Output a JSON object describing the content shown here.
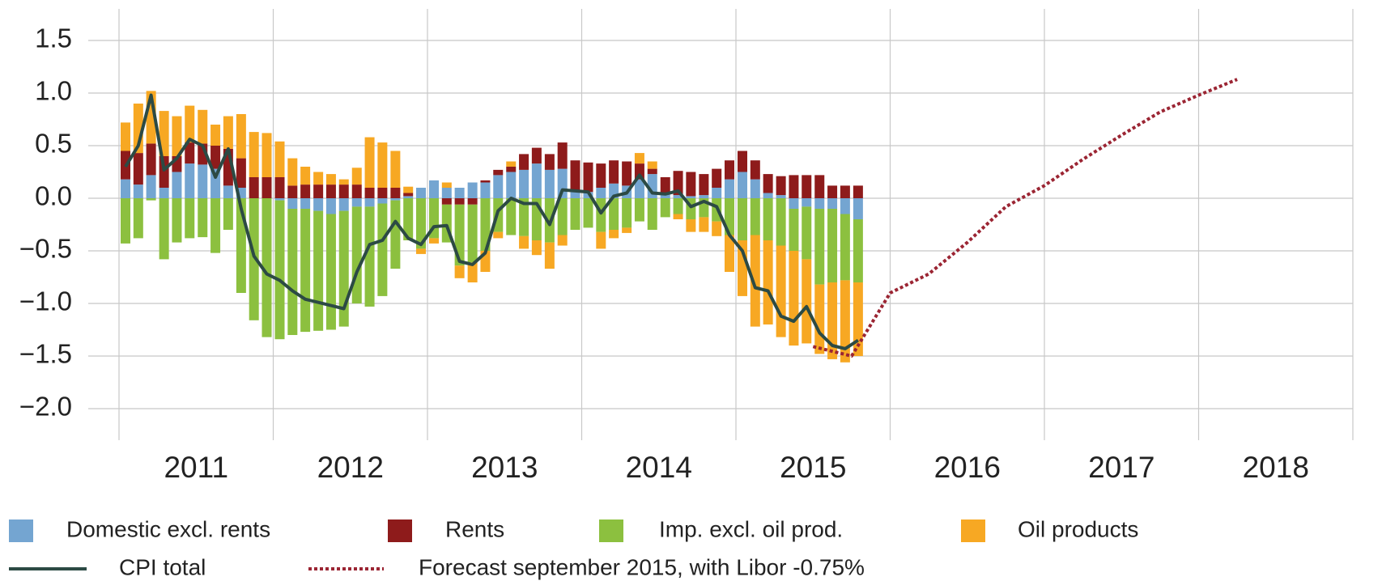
{
  "chart_data": {
    "type": "bar",
    "stacked": true,
    "xlim": [
      2011,
      2019
    ],
    "ylim": [
      -2.3,
      1.8
    ],
    "yticks": [
      1.5,
      {
        "value": 1,
        "label": "1.0"
      },
      0.5,
      {
        "value": 0,
        "label": "0.0"
      },
      {
        "value": -0.5,
        "label": "−0.5"
      },
      {
        "value": -1,
        "label": "−1.0"
      },
      {
        "value": -1.5,
        "label": "−1.5"
      },
      {
        "value": -2,
        "label": "−2.0"
      }
    ],
    "xticks": [
      {
        "value": 2011.5,
        "label": "2011"
      },
      {
        "value": 2012.5,
        "label": "2012"
      },
      {
        "value": 2013.5,
        "label": "2013"
      },
      {
        "value": 2014.5,
        "label": "2014"
      },
      {
        "value": 2015.5,
        "label": "2015"
      },
      {
        "value": 2016.5,
        "label": "2016"
      },
      {
        "value": 2017.5,
        "label": "2017"
      },
      {
        "value": 2018.5,
        "label": "2018"
      }
    ],
    "xgrid": [
      2011,
      2012,
      2013,
      2014,
      2015,
      2016,
      2017,
      2018,
      2019
    ],
    "grid": true,
    "legend": "bottom",
    "x": [
      2011.042,
      2011.125,
      2011.208,
      2011.292,
      2011.375,
      2011.458,
      2011.542,
      2011.625,
      2011.708,
      2011.792,
      2011.875,
      2011.958,
      2012.042,
      2012.125,
      2012.208,
      2012.292,
      2012.375,
      2012.458,
      2012.542,
      2012.625,
      2012.708,
      2012.792,
      2012.875,
      2012.958,
      2013.042,
      2013.125,
      2013.208,
      2013.292,
      2013.375,
      2013.458,
      2013.542,
      2013.625,
      2013.708,
      2013.792,
      2013.875,
      2013.958,
      2014.042,
      2014.125,
      2014.208,
      2014.292,
      2014.375,
      2014.458,
      2014.542,
      2014.625,
      2014.708,
      2014.792,
      2014.875,
      2014.958,
      2015.042,
      2015.125,
      2015.208,
      2015.292,
      2015.375,
      2015.458,
      2015.542,
      2015.625,
      2015.708,
      2015.792
    ],
    "series": [
      {
        "name": "Domestic excl. rents",
        "color": "#74a5d1",
        "values": [
          0.18,
          0.13,
          0.22,
          0.1,
          0.25,
          0.33,
          0.32,
          0.28,
          0.12,
          0.1,
          0,
          0,
          -0.02,
          -0.1,
          -0.1,
          -0.12,
          -0.15,
          -0.12,
          -0.08,
          -0.08,
          -0.05,
          -0.02,
          0.02,
          0.1,
          0.17,
          0.1,
          0.1,
          0.15,
          0.15,
          0.22,
          0.25,
          0.27,
          0.33,
          0.27,
          0.28,
          0.06,
          0.06,
          0.1,
          0.14,
          0.12,
          0.18,
          0.23,
          0.05,
          0.03,
          0.02,
          0.03,
          0.1,
          0.18,
          0.25,
          0.18,
          0.05,
          0.03,
          -0.1,
          -0.08,
          -0.1,
          -0.1,
          -0.15,
          -0.2
        ]
      },
      {
        "name": "Rents",
        "color": "#8e1b1b",
        "values": [
          0.27,
          0.3,
          0.3,
          0.3,
          0.15,
          0.2,
          0.2,
          0.22,
          0.35,
          0.28,
          0.2,
          0.2,
          0.2,
          0.12,
          0.13,
          0.13,
          0.13,
          0.13,
          0.13,
          0.1,
          0.1,
          0.1,
          0.03,
          0,
          0,
          -0.06,
          -0.06,
          -0.06,
          0.02,
          0.05,
          0.05,
          0.15,
          0.15,
          0.15,
          0.25,
          0.3,
          0.28,
          0.23,
          0.22,
          0.23,
          0.15,
          0.05,
          0.15,
          0.23,
          0.23,
          0.2,
          0.18,
          0.18,
          0.2,
          0.18,
          0.18,
          0.18,
          0.22,
          0.22,
          0.22,
          0.12,
          0.12,
          0.12
        ]
      },
      {
        "name": "Imp. excl. oil prod.",
        "color": "#8cc03f",
        "values": [
          -0.43,
          -0.38,
          -0.02,
          -0.58,
          -0.42,
          -0.38,
          -0.37,
          -0.52,
          -0.3,
          -0.9,
          -1.16,
          -1.32,
          -1.32,
          -1.2,
          -1.17,
          -1.14,
          -1.1,
          -1.1,
          -0.92,
          -0.95,
          -0.88,
          -0.65,
          -0.4,
          -0.48,
          -0.38,
          -0.36,
          -0.58,
          -0.55,
          -0.5,
          -0.32,
          -0.35,
          -0.36,
          -0.4,
          -0.42,
          -0.35,
          -0.3,
          -0.28,
          -0.32,
          -0.3,
          -0.28,
          -0.22,
          -0.3,
          -0.18,
          -0.15,
          -0.2,
          -0.18,
          -0.22,
          -0.35,
          -0.4,
          -0.35,
          -0.4,
          -0.45,
          -0.4,
          -0.5,
          -0.72,
          -0.7,
          -0.63,
          -0.6
        ]
      },
      {
        "name": "Oil products",
        "color": "#f7a823",
        "values": [
          0.27,
          0.47,
          0.5,
          0.43,
          0.38,
          0.35,
          0.32,
          0.2,
          0.31,
          0.42,
          0.43,
          0.42,
          0.34,
          0.26,
          0.17,
          0.12,
          0.1,
          0.05,
          0.16,
          0.48,
          0.43,
          0.35,
          0.06,
          -0.05,
          -0.05,
          0.05,
          -0.12,
          -0.19,
          -0.2,
          -0.06,
          0.05,
          -0.12,
          -0.14,
          -0.25,
          -0.1,
          0,
          0,
          -0.16,
          -0.08,
          -0.05,
          0.1,
          0.07,
          0,
          -0.05,
          -0.12,
          -0.14,
          -0.14,
          -0.35,
          -0.53,
          -0.87,
          -0.8,
          -0.87,
          -0.9,
          -0.8,
          -0.66,
          -0.73,
          -0.78,
          -0.7
        ]
      }
    ],
    "lines": [
      {
        "name": "CPI total",
        "color": "#2c4a44",
        "style": "solid",
        "x": [
          2011.042,
          2011.125,
          2011.208,
          2011.292,
          2011.375,
          2011.458,
          2011.542,
          2011.625,
          2011.708,
          2011.792,
          2011.875,
          2011.958,
          2012.042,
          2012.125,
          2012.208,
          2012.292,
          2012.375,
          2012.458,
          2012.542,
          2012.625,
          2012.708,
          2012.792,
          2012.875,
          2012.958,
          2013.042,
          2013.125,
          2013.208,
          2013.292,
          2013.375,
          2013.458,
          2013.542,
          2013.625,
          2013.708,
          2013.792,
          2013.875,
          2013.958,
          2014.042,
          2014.125,
          2014.208,
          2014.292,
          2014.375,
          2014.458,
          2014.542,
          2014.625,
          2014.708,
          2014.792,
          2014.875,
          2014.958,
          2015.042,
          2015.125,
          2015.208,
          2015.292,
          2015.375,
          2015.458,
          2015.542,
          2015.625,
          2015.708,
          2015.792
        ],
        "values": [
          0.3,
          0.5,
          0.98,
          0.27,
          0.38,
          0.56,
          0.5,
          0.2,
          0.47,
          -0.1,
          -0.55,
          -0.72,
          -0.78,
          -0.88,
          -0.96,
          -0.99,
          -1.02,
          -1.05,
          -0.7,
          -0.44,
          -0.4,
          -0.22,
          -0.38,
          -0.44,
          -0.27,
          -0.26,
          -0.6,
          -0.63,
          -0.52,
          -0.12,
          0,
          -0.05,
          -0.05,
          -0.25,
          0.08,
          0.07,
          0.06,
          -0.14,
          0.02,
          0.05,
          0.22,
          0.05,
          0.04,
          0.07,
          -0.08,
          -0.03,
          -0.08,
          -0.35,
          -0.5,
          -0.85,
          -0.88,
          -1.12,
          -1.17,
          -1.03,
          -1.28,
          -1.4,
          -1.43,
          -1.35
        ]
      },
      {
        "name": "Forecast september 2015, with Libor -0.75%",
        "color": "#9b2533",
        "style": "dotted",
        "x": [
          2015.5,
          2015.75,
          2016.0,
          2016.25,
          2016.5,
          2016.75,
          2017.0,
          2017.25,
          2017.5,
          2017.75,
          2018.0,
          2018.25
        ],
        "values": [
          -1.41,
          -1.5,
          -0.9,
          -0.72,
          -0.42,
          -0.08,
          0.12,
          0.37,
          0.6,
          0.82,
          0.98,
          1.13
        ]
      }
    ]
  }
}
